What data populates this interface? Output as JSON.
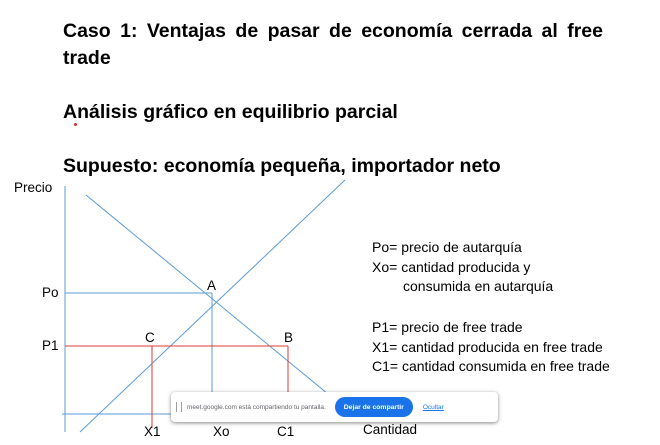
{
  "slide": {
    "title": "Caso 1: Ventajas de pasar de economía cerrada al free trade",
    "subtitle": "Análisis gráfico en equilibrio parcial",
    "assumption": "Supuesto: economía pequeña, importador neto"
  },
  "graph": {
    "y_axis_label": "Precio",
    "x_axis_label": "Cantidad",
    "price_labels": {
      "po": "Po",
      "p1": "P1"
    },
    "quantity_labels": {
      "x1": "X1",
      "xo": "Xo",
      "c1": "C1"
    },
    "point_labels": {
      "a": "A",
      "b": "B",
      "c": "C"
    },
    "line_color": "#5b9bd5",
    "free_trade_line_color": "#e53935"
  },
  "legend": {
    "autarky": {
      "line1": "Po= precio de autarquía",
      "line2": "Xo= cantidad producida  y",
      "line3": "consumida en autarquía"
    },
    "free_trade": {
      "line1": "P1= precio de free trade",
      "line2": "X1= cantidad producida en free trade",
      "line3": "C1= cantidad consumida en free trade"
    }
  },
  "screen_share_bar": {
    "message": "meet.google.com está compartiendo tu pantalla.",
    "stop_button": "Dejar de compartir",
    "hide_link": "Ocultar",
    "button_color": "#1a73e8"
  }
}
